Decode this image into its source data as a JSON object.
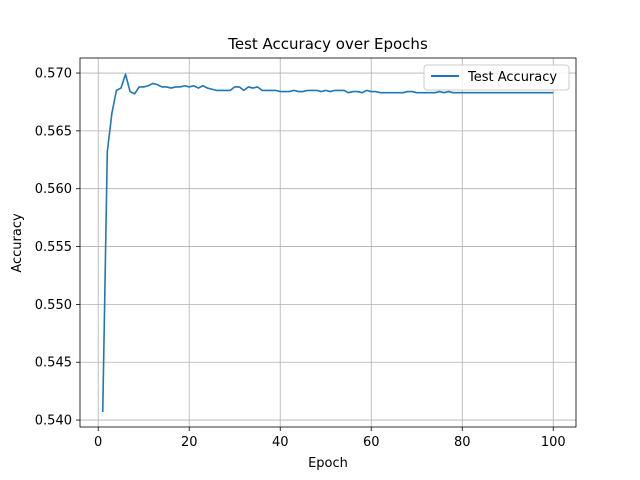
{
  "chart_data": {
    "type": "line",
    "title": "Test Accuracy over Epochs",
    "xlabel": "Epoch",
    "ylabel": "Accuracy",
    "xlim": [
      -4,
      105
    ],
    "ylim": [
      0.5394,
      0.5713
    ],
    "xticks": [
      0,
      20,
      40,
      60,
      80,
      100
    ],
    "xtick_labels": [
      "0",
      "20",
      "40",
      "60",
      "80",
      "100"
    ],
    "yticks": [
      0.54,
      0.545,
      0.55,
      0.555,
      0.56,
      0.565,
      0.57
    ],
    "ytick_labels": [
      "0.540",
      "0.545",
      "0.550",
      "0.555",
      "0.560",
      "0.565",
      "0.570"
    ],
    "grid": true,
    "legend_position": "top-right",
    "series": [
      {
        "name": "Test Accuracy",
        "color": "#1f77b4",
        "x": [
          1,
          2,
          3,
          4,
          5,
          6,
          7,
          8,
          9,
          10,
          11,
          12,
          13,
          14,
          15,
          16,
          17,
          18,
          19,
          20,
          21,
          22,
          23,
          24,
          25,
          26,
          27,
          28,
          29,
          30,
          31,
          32,
          33,
          34,
          35,
          36,
          37,
          38,
          39,
          40,
          41,
          42,
          43,
          44,
          45,
          46,
          47,
          48,
          49,
          50,
          51,
          52,
          53,
          54,
          55,
          56,
          57,
          58,
          59,
          60,
          61,
          62,
          63,
          64,
          65,
          66,
          67,
          68,
          69,
          70,
          71,
          72,
          73,
          74,
          75,
          76,
          77,
          78,
          79,
          80,
          81,
          82,
          83,
          84,
          85,
          86,
          87,
          88,
          89,
          90,
          91,
          92,
          93,
          94,
          95,
          96,
          97,
          98,
          99,
          100
        ],
        "values": [
          0.5407,
          0.5632,
          0.5665,
          0.5685,
          0.5687,
          0.5699,
          0.5684,
          0.5682,
          0.5688,
          0.5688,
          0.5689,
          0.5691,
          0.569,
          0.5688,
          0.5688,
          0.5687,
          0.5688,
          0.5688,
          0.5689,
          0.5688,
          0.5689,
          0.5687,
          0.5689,
          0.5687,
          0.5686,
          0.5685,
          0.5685,
          0.5685,
          0.5685,
          0.5688,
          0.5688,
          0.5685,
          0.5688,
          0.5687,
          0.5688,
          0.5685,
          0.5685,
          0.5685,
          0.5685,
          0.5684,
          0.5684,
          0.5684,
          0.5685,
          0.5684,
          0.5684,
          0.5685,
          0.5685,
          0.5685,
          0.5684,
          0.5685,
          0.5684,
          0.5685,
          0.5685,
          0.5685,
          0.5683,
          0.5684,
          0.5684,
          0.5683,
          0.5685,
          0.5684,
          0.5684,
          0.5683,
          0.5683,
          0.5683,
          0.5683,
          0.5683,
          0.5683,
          0.5684,
          0.5684,
          0.5683,
          0.5683,
          0.5683,
          0.5683,
          0.5683,
          0.5684,
          0.5683,
          0.5684,
          0.5683,
          0.5683,
          0.5683,
          0.5683,
          0.5683,
          0.5683,
          0.5683,
          0.5683,
          0.5683,
          0.5683,
          0.5683,
          0.5683,
          0.5683,
          0.5683,
          0.5683,
          0.5683,
          0.5683,
          0.5683,
          0.5683,
          0.5683,
          0.5683,
          0.5683,
          0.5683
        ]
      }
    ]
  }
}
